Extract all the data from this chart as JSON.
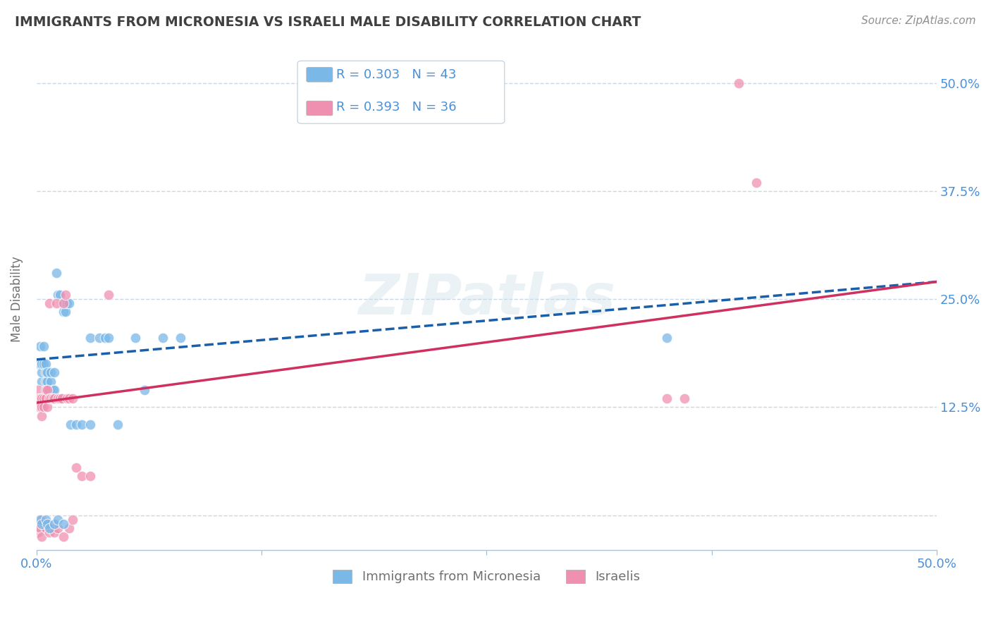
{
  "title": "IMMIGRANTS FROM MICRONESIA VS ISRAELI MALE DISABILITY CORRELATION CHART",
  "source": "Source: ZipAtlas.com",
  "ylabel": "Male Disability",
  "watermark": "ZIPatlas",
  "xmin": 0.0,
  "xmax": 0.5,
  "ymin": -0.04,
  "ymax": 0.54,
  "yticks": [
    0.0,
    0.125,
    0.25,
    0.375,
    0.5
  ],
  "ytick_labels": [
    "",
    "12.5%",
    "25.0%",
    "37.5%",
    "50.0%"
  ],
  "xticks": [
    0.0,
    0.125,
    0.25,
    0.375,
    0.5
  ],
  "xtick_labels": [
    "0.0%",
    "",
    "",
    "",
    "50.0%"
  ],
  "blue_color": "#7ab8e8",
  "pink_color": "#f090b0",
  "blue_line_color": "#1a5faa",
  "pink_line_color": "#d03060",
  "legend_r_blue": "R = 0.303",
  "legend_n_blue": "N = 43",
  "legend_r_pink": "R = 0.393",
  "legend_n_pink": "N = 36",
  "blue_scatter_x": [
    0.001,
    0.002,
    0.002,
    0.003,
    0.003,
    0.003,
    0.004,
    0.004,
    0.005,
    0.005,
    0.005,
    0.006,
    0.006,
    0.007,
    0.007,
    0.008,
    0.008,
    0.009,
    0.009,
    0.01,
    0.01,
    0.011,
    0.012,
    0.013,
    0.014,
    0.015,
    0.016,
    0.017,
    0.018,
    0.019,
    0.022,
    0.025,
    0.03,
    0.03,
    0.035,
    0.038,
    0.04,
    0.045,
    0.055,
    0.06,
    0.07,
    0.08,
    0.35
  ],
  "blue_scatter_y": [
    0.175,
    0.175,
    0.195,
    0.155,
    0.165,
    0.175,
    0.175,
    0.195,
    0.165,
    0.175,
    0.155,
    0.155,
    0.165,
    0.135,
    0.145,
    0.155,
    0.165,
    0.135,
    0.145,
    0.145,
    0.165,
    0.28,
    0.255,
    0.255,
    0.245,
    0.235,
    0.235,
    0.245,
    0.245,
    0.105,
    0.105,
    0.105,
    0.105,
    0.205,
    0.205,
    0.205,
    0.205,
    0.105,
    0.205,
    0.145,
    0.205,
    0.205,
    0.205
  ],
  "pink_scatter_x": [
    0.001,
    0.001,
    0.001,
    0.002,
    0.002,
    0.003,
    0.003,
    0.003,
    0.004,
    0.004,
    0.005,
    0.005,
    0.006,
    0.006,
    0.007,
    0.007,
    0.008,
    0.009,
    0.01,
    0.011,
    0.012,
    0.013,
    0.014,
    0.015,
    0.016,
    0.017,
    0.018,
    0.02,
    0.022,
    0.025,
    0.03,
    0.04,
    0.35,
    0.36,
    0.39,
    0.4
  ],
  "pink_scatter_y": [
    0.145,
    0.135,
    0.125,
    0.135,
    0.125,
    0.135,
    0.125,
    0.115,
    0.135,
    0.125,
    0.145,
    0.135,
    0.145,
    0.125,
    0.135,
    0.245,
    0.135,
    0.135,
    0.135,
    0.245,
    0.135,
    0.135,
    0.135,
    0.245,
    0.255,
    0.135,
    0.135,
    0.135,
    0.055,
    0.045,
    0.045,
    0.255,
    0.135,
    0.135,
    0.5,
    0.385
  ],
  "pink_below_zero_x": [
    0.001,
    0.001,
    0.002,
    0.002,
    0.003,
    0.003,
    0.004,
    0.005,
    0.006,
    0.007,
    0.008,
    0.01,
    0.01,
    0.012,
    0.015,
    0.018,
    0.02
  ],
  "pink_below_zero_y": [
    -0.01,
    -0.02,
    -0.01,
    -0.015,
    -0.005,
    -0.025,
    -0.01,
    -0.015,
    -0.01,
    -0.02,
    -0.015,
    -0.01,
    -0.02,
    -0.015,
    -0.025,
    -0.015,
    -0.005
  ],
  "blue_below_zero_x": [
    0.002,
    0.003,
    0.005,
    0.006,
    0.007,
    0.01,
    0.012,
    0.015
  ],
  "blue_below_zero_y": [
    -0.005,
    -0.01,
    -0.005,
    -0.01,
    -0.015,
    -0.01,
    -0.005,
    -0.01
  ],
  "background_color": "#ffffff",
  "grid_color": "#c8d8e8",
  "right_tick_color": "#4a90d9",
  "title_color": "#404040",
  "axis_label_color": "#707070"
}
